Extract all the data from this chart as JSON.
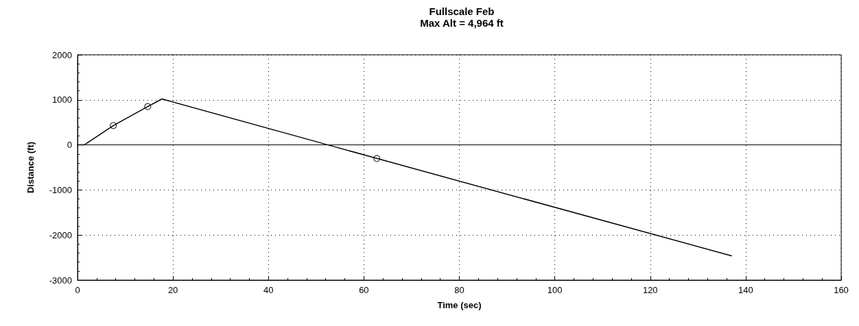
{
  "chart_data": {
    "type": "line",
    "title": "Fullscale Feb",
    "subtitle": "Max Alt = 4,964 ft",
    "xlabel": "Time (sec)",
    "ylabel": "Distance (ft)",
    "series": [
      {
        "color": "#000000",
        "marker": "none",
        "x": [
          0,
          1.4,
          7.5,
          14.7,
          17.7,
          52.5,
          62.7,
          137
        ],
        "values": [
          0,
          0,
          430,
          850,
          1020,
          0,
          -300,
          -2460
        ]
      },
      {
        "type": "scatter",
        "color": "#000000",
        "marker": "circle",
        "x": [
          7.5,
          14.7,
          62.7
        ],
        "values": [
          430,
          850,
          -300
        ]
      }
    ],
    "xlim": [
      0,
      160
    ],
    "xticks": [
      0,
      20,
      40,
      60,
      80,
      100,
      120,
      140,
      160
    ],
    "ylim": [
      -3000,
      2000
    ],
    "yticks": [
      -3000,
      -2000,
      -1000,
      0,
      1000,
      2000
    ],
    "ref_lines": [
      {
        "axis": "y",
        "value": 0,
        "label": null,
        "color": "#000000",
        "line_style": "solid"
      }
    ],
    "grid": true
  }
}
